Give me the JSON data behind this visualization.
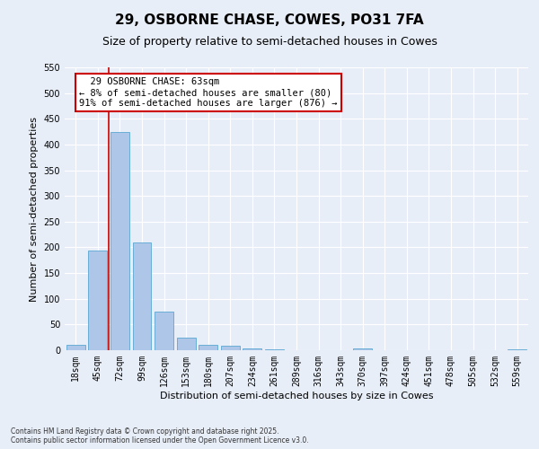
{
  "title": "29, OSBORNE CHASE, COWES, PO31 7FA",
  "subtitle": "Size of property relative to semi-detached houses in Cowes",
  "xlabel": "Distribution of semi-detached houses by size in Cowes",
  "ylabel": "Number of semi-detached properties",
  "footnote1": "Contains HM Land Registry data © Crown copyright and database right 2025.",
  "footnote2": "Contains public sector information licensed under the Open Government Licence v3.0.",
  "categories": [
    "18sqm",
    "45sqm",
    "72sqm",
    "99sqm",
    "126sqm",
    "153sqm",
    "180sqm",
    "207sqm",
    "234sqm",
    "261sqm",
    "289sqm",
    "316sqm",
    "343sqm",
    "370sqm",
    "397sqm",
    "424sqm",
    "451sqm",
    "478sqm",
    "505sqm",
    "532sqm",
    "559sqm"
  ],
  "values": [
    10,
    193,
    425,
    210,
    75,
    25,
    10,
    8,
    4,
    1,
    0,
    0,
    0,
    3,
    0,
    0,
    0,
    0,
    0,
    0,
    2
  ],
  "bar_color": "#aec6e8",
  "bar_edge_color": "#6aaed6",
  "red_line_x": 1.5,
  "red_line_label1": "  29 OSBORNE CHASE: 63sqm",
  "red_line_label2": "← 8% of semi-detached houses are smaller (80)",
  "red_line_label3": "91% of semi-detached houses are larger (876) →",
  "ylim": [
    0,
    550
  ],
  "yticks": [
    0,
    50,
    100,
    150,
    200,
    250,
    300,
    350,
    400,
    450,
    500,
    550
  ],
  "background_color": "#e8eef8",
  "grid_color": "#ffffff",
  "annotation_box_edge_color": "#cc0000",
  "red_line_color": "#cc0000",
  "title_fontsize": 11,
  "subtitle_fontsize": 9,
  "label_fontsize": 8,
  "tick_fontsize": 7,
  "annotation_fontsize": 7.5
}
